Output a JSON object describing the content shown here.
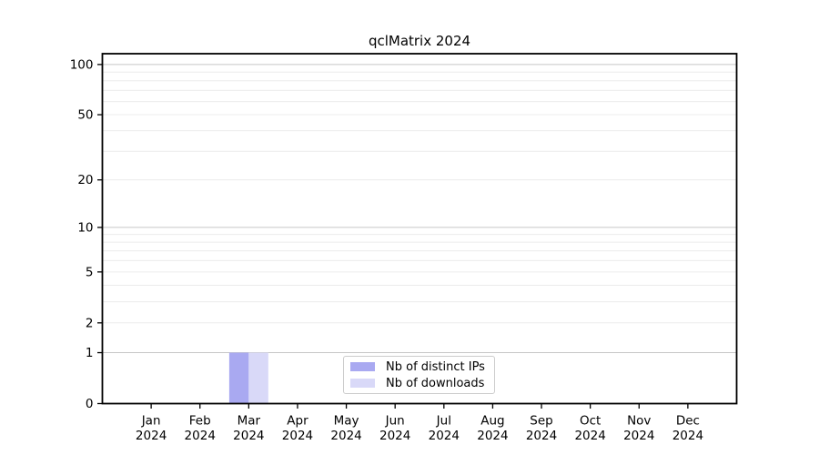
{
  "title": "qclMatrix 2024",
  "colors": {
    "background": "#ffffff",
    "axis": "#000000",
    "tick_text": "#000000",
    "major_grid": "#c6c6c6",
    "minor_grid": "#ececec",
    "distinct_ips": "#a9a9f1",
    "downloads": "#d9d9f8"
  },
  "legend": {
    "position": "lower center",
    "items": [
      {
        "label": "Nb of distinct IPs",
        "color": "#a9a9f1"
      },
      {
        "label": "Nb of downloads",
        "color": "#d9d9f8"
      }
    ]
  },
  "chart_data": {
    "type": "bar",
    "title": "qclMatrix 2024",
    "xlabel": "",
    "ylabel": "",
    "categories": [
      "Jan 2024",
      "Feb 2024",
      "Mar 2024",
      "Apr 2024",
      "May 2024",
      "Jun 2024",
      "Jul 2024",
      "Aug 2024",
      "Sep 2024",
      "Oct 2024",
      "Nov 2024",
      "Dec 2024"
    ],
    "series": [
      {
        "name": "Nb of distinct IPs",
        "color": "#a9a9f1",
        "values": [
          0,
          0,
          1,
          0,
          0,
          0,
          0,
          0,
          0,
          0,
          0,
          0
        ]
      },
      {
        "name": "Nb of downloads",
        "color": "#d9d9f8",
        "values": [
          0,
          0,
          1,
          0,
          0,
          0,
          0,
          0,
          0,
          0,
          0,
          0
        ]
      }
    ],
    "y_scale": "log1p",
    "ylim": [
      0,
      116
    ],
    "y_tick_values": [
      0,
      1,
      2,
      5,
      10,
      20,
      50,
      100
    ],
    "y_major_gridlines": [
      1,
      10,
      100
    ],
    "y_minor_gridlines": [
      2,
      3,
      4,
      5,
      6,
      7,
      8,
      9,
      20,
      30,
      40,
      50,
      60,
      70,
      80,
      90
    ],
    "grid": true,
    "legend_position": "lower center"
  }
}
